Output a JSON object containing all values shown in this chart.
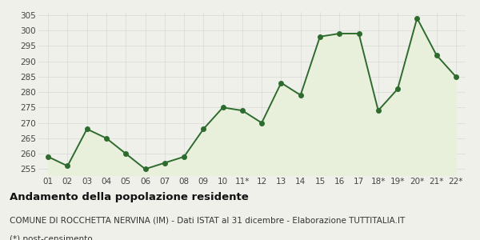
{
  "x_labels": [
    "01",
    "02",
    "03",
    "04",
    "05",
    "06",
    "07",
    "08",
    "09",
    "10",
    "11*",
    "12",
    "13",
    "14",
    "15",
    "16",
    "17",
    "18*",
    "19*",
    "20*",
    "21*",
    "22*"
  ],
  "y_values": [
    259,
    256,
    268,
    265,
    260,
    255,
    257,
    259,
    268,
    275,
    274,
    270,
    283,
    279,
    298,
    299,
    299,
    274,
    281,
    304,
    292,
    285
  ],
  "line_color": "#2e6b2e",
  "fill_color": "#e8f0dc",
  "marker_color": "#2e6b2e",
  "bg_color": "#f0f0eb",
  "grid_color": "#d8d8d8",
  "ylim": [
    253,
    306
  ],
  "yticks": [
    255,
    260,
    265,
    270,
    275,
    280,
    285,
    290,
    295,
    300,
    305
  ],
  "title": "Andamento della popolazione residente",
  "subtitle": "COMUNE DI ROCCHETTA NERVINA (IM) - Dati ISTAT al 31 dicembre - Elaborazione TUTTITALIA.IT",
  "footnote": "(*) post-censimento",
  "title_fontsize": 9.5,
  "subtitle_fontsize": 7.5,
  "footnote_fontsize": 7.5,
  "tick_fontsize": 7.5,
  "axis_label_color": "#444444"
}
